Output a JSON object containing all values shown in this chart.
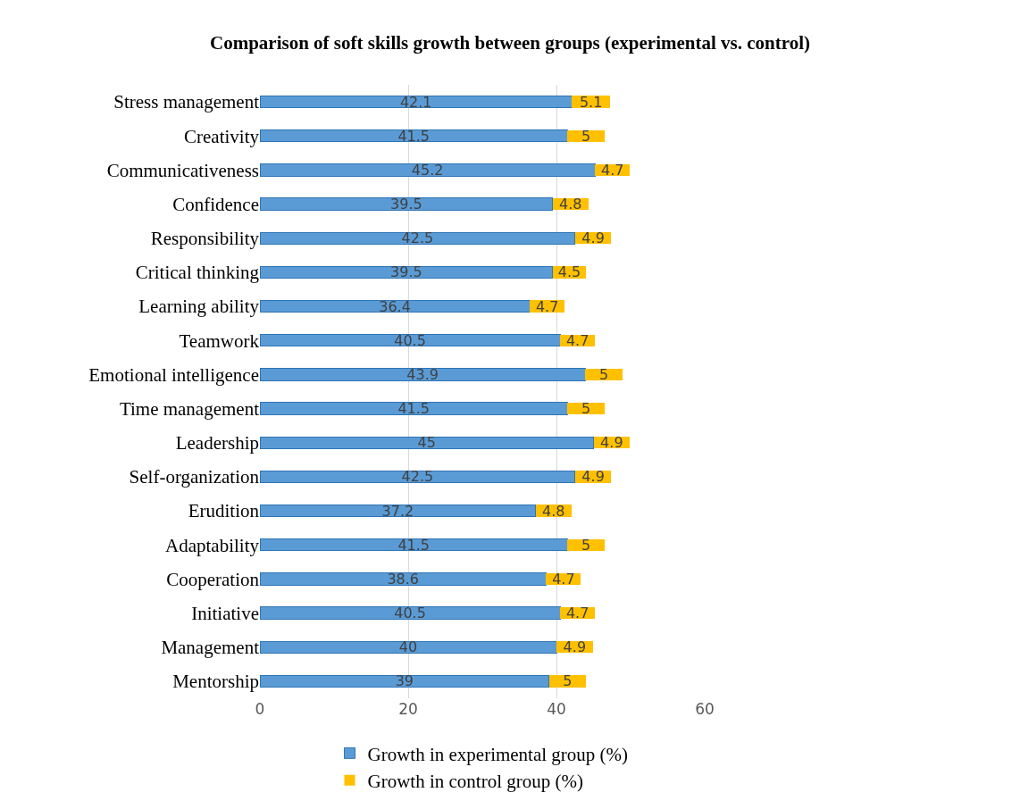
{
  "chart_data": {
    "type": "bar",
    "orientation": "horizontal",
    "stacked": true,
    "title": "Comparison of soft skills growth between groups (experimental vs. control)",
    "categories": [
      "Stress management",
      "Creativity",
      "Communicativeness",
      "Confidence",
      "Responsibility",
      "Critical thinking",
      "Learning ability",
      "Teamwork",
      "Emotional intelligence",
      "Time management",
      "Leadership",
      "Self-organization",
      "Erudition",
      "Adaptability",
      "Cooperation",
      "Initiative",
      "Management",
      "Mentorship"
    ],
    "series": [
      {
        "name": "Growth in experimental group (%)",
        "color": "#5b9bd5",
        "values": [
          42.1,
          41.5,
          45.2,
          39.5,
          42.5,
          39.5,
          36.4,
          40.5,
          43.9,
          41.5,
          45,
          42.5,
          37.2,
          41.5,
          38.6,
          40.5,
          40,
          39
        ]
      },
      {
        "name": "Growth in control group (%)",
        "color": "#ffc000",
        "values": [
          5.1,
          5,
          4.7,
          4.8,
          4.9,
          4.5,
          4.7,
          4.7,
          5,
          5,
          4.9,
          4.9,
          4.8,
          5,
          4.7,
          4.7,
          4.9,
          5
        ]
      }
    ],
    "xlim": [
      0,
      60
    ],
    "xticks": [
      0,
      20,
      40,
      60
    ],
    "grid": "x",
    "data_labels": true,
    "legend": "bottom"
  }
}
